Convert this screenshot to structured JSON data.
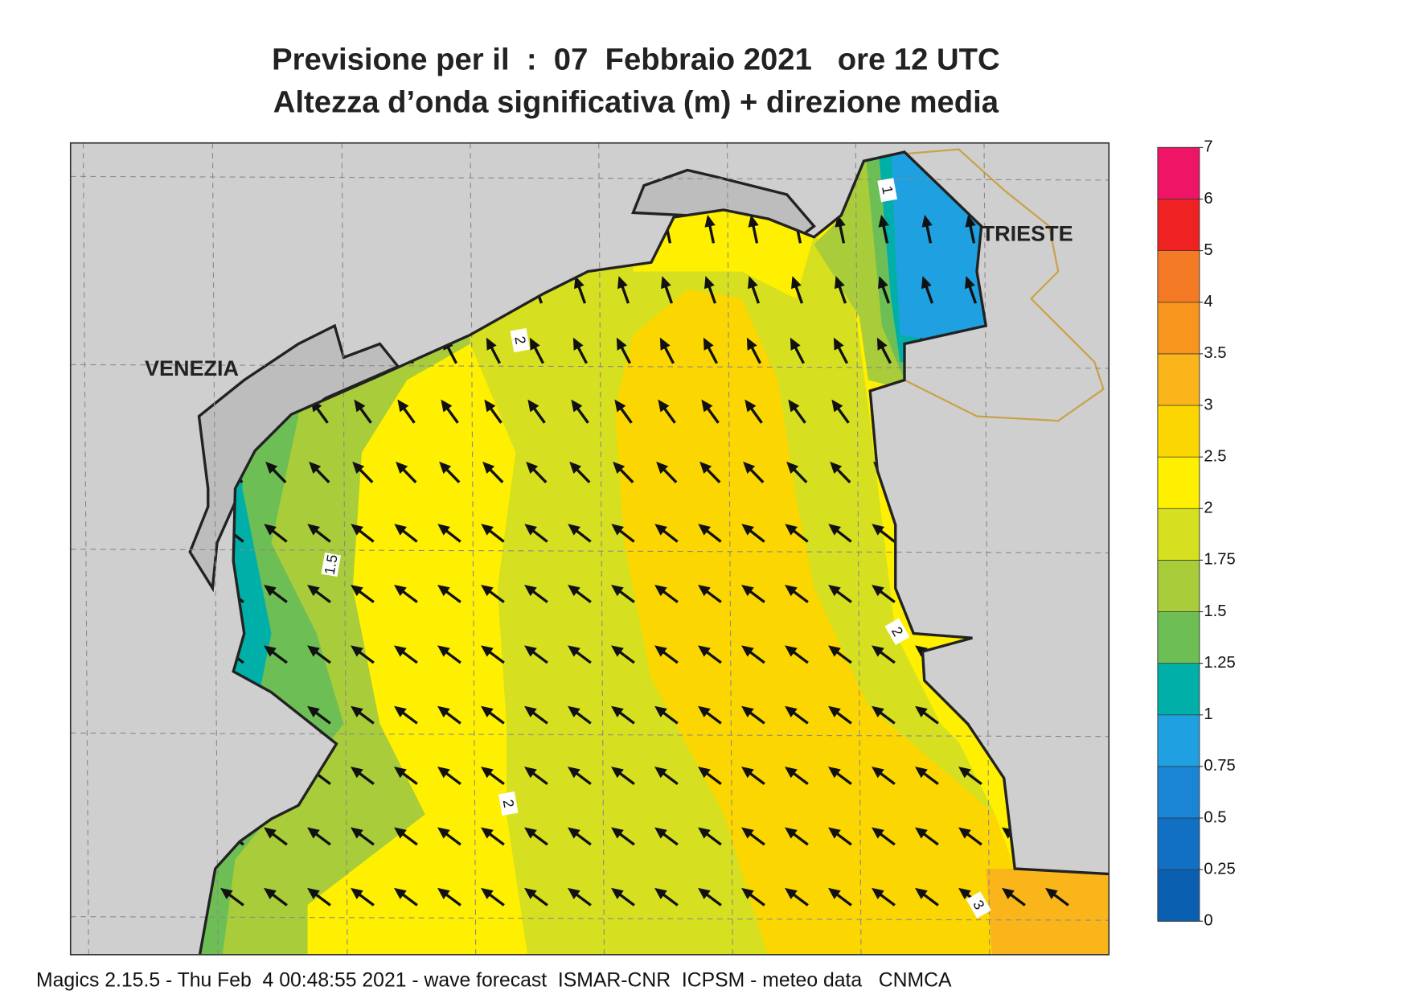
{
  "header": {
    "title": "Previsione per il  :  07  Febbraio 2021   ore 12 UTC",
    "subtitle": "Altezza d’onda significativa (m) + direzione media"
  },
  "map": {
    "cities": [
      "VENEZIA",
      "TRIESTE"
    ],
    "contour_labels": [
      "2",
      "1.5",
      "2",
      "1",
      "2",
      "3"
    ]
  },
  "legend": {
    "levels": [
      0,
      0.25,
      0.5,
      0.75,
      1,
      1.25,
      1.5,
      1.75,
      2,
      2.5,
      3,
      3.5,
      4,
      5,
      6,
      7
    ],
    "colors": [
      "#0b5fb0",
      "#1270c4",
      "#1a85d4",
      "#1fa0e0",
      "#00b0a8",
      "#6dbf55",
      "#a8cc3a",
      "#d6e020",
      "#ffef00",
      "#fcd600",
      "#f9b51a",
      "#f7951c",
      "#f47a25",
      "#ee2222",
      "#ee1466"
    ]
  },
  "footer": {
    "text": "Magics 2.15.5 - Thu Feb  4 00:48:55 2021 - wave forecast  ISMAR-CNR  ICPSM - meteo data   CNMCA"
  }
}
